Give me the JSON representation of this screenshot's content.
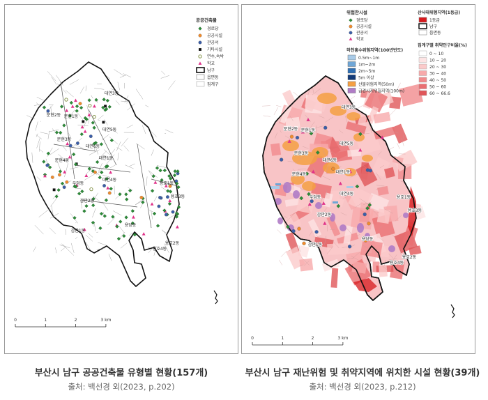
{
  "left_map": {
    "legend_title": "공공건축물",
    "legend_items": [
      {
        "label": "경로당",
        "symbol": "diamond",
        "color": "#2e8b3a"
      },
      {
        "label": "공공시설",
        "symbol": "circle",
        "color": "#f08c2e"
      },
      {
        "label": "관공서",
        "symbol": "circle",
        "color": "#3b5ea8"
      },
      {
        "label": "기타시설",
        "symbol": "square",
        "color": "#111111"
      },
      {
        "label": "연수,숙박",
        "symbol": "ring",
        "color": "#7a8a3a"
      },
      {
        "label": "학교",
        "symbol": "triangle",
        "color": "#e0338a"
      }
    ],
    "legend_boundary": [
      {
        "label": "남구",
        "style": "thick"
      },
      {
        "label": "읍면동",
        "style": "thin"
      },
      {
        "label": "집계구",
        "style": "thin-light"
      }
    ],
    "districts": [
      "대연3동",
      "문현2동",
      "문현1동",
      "대연5동",
      "문현3동",
      "대연6동",
      "문현4동",
      "대연1동",
      "대연4동",
      "우암동",
      "감만2동",
      "감만1동",
      "용당동",
      "용호1동",
      "용호3동",
      "용호2동",
      "용호4동"
    ],
    "scale": {
      "ticks": [
        "0",
        "1",
        "2",
        "3 km"
      ]
    }
  },
  "right_map": {
    "legend_facility_title": "위험한시설",
    "legend_facility": [
      {
        "label": "경로당",
        "symbol": "diamond",
        "color": "#2e8b3a"
      },
      {
        "label": "공공시설",
        "symbol": "circle",
        "color": "#f08c2e"
      },
      {
        "label": "관공서",
        "symbol": "circle",
        "color": "#3b5ea8"
      },
      {
        "label": "학교",
        "symbol": "triangle",
        "color": "#e0338a"
      }
    ],
    "legend_flood_title": "하천홍수위험지역(100년빈도)",
    "legend_flood": [
      {
        "label": "0.5m~1m",
        "color": "#a9cbe8"
      },
      {
        "label": "1m~2m",
        "color": "#6fa6d6"
      },
      {
        "label": "2m~5m",
        "color": "#2f6fb3"
      },
      {
        "label": "5m 이상",
        "color": "#123a78"
      },
      {
        "label": "산불위험지역(50m)",
        "color": "#f5a043"
      },
      {
        "label": "급경사지위험지역(100m)",
        "color": "#b07cc6"
      }
    ],
    "legend_landslide_title": "산사태위험지역(1등급)",
    "legend_landslide": [
      {
        "label": "1등급",
        "color": "#d7191c",
        "style": "fill"
      },
      {
        "label": "남구",
        "style": "thick"
      },
      {
        "label": "읍면동",
        "style": "thin"
      }
    ],
    "legend_vuln_title": "집계구별 취약인구비율(%)",
    "legend_vuln": [
      {
        "label": "0 ~ 10",
        "color": "#ffffff"
      },
      {
        "label": "10 ~ 20",
        "color": "#fde4e4"
      },
      {
        "label": "20 ~ 30",
        "color": "#fbcaca"
      },
      {
        "label": "30 ~ 40",
        "color": "#f7aaab"
      },
      {
        "label": "40 ~ 50",
        "color": "#f18b8d"
      },
      {
        "label": "50 ~ 60",
        "color": "#ea6f72"
      },
      {
        "label": "60 ~ 66.6",
        "color": "#e05659"
      }
    ],
    "districts": [
      "대연3동",
      "문현2동",
      "문현1동",
      "대연5동",
      "문현3동",
      "대연6동",
      "문현4동",
      "대연1동",
      "대연4동",
      "우암동",
      "감만2동",
      "감만1동",
      "용당동",
      "용호1동",
      "용호3동",
      "용호2동",
      "용호4동"
    ],
    "scale": {
      "ticks": [
        "0",
        "1",
        "2",
        "3 km"
      ]
    }
  },
  "captions": {
    "left_title": "부산시 남구 공공건축물 유형별 현황(157개)",
    "left_source": "출처: 백선경 외(2023, p.202)",
    "right_title": "부산시 남구 재난위험 및 취약지역에 위치한 시설 현황(39개)",
    "right_source": "출처: 백선경 외(2023, p.212)"
  }
}
